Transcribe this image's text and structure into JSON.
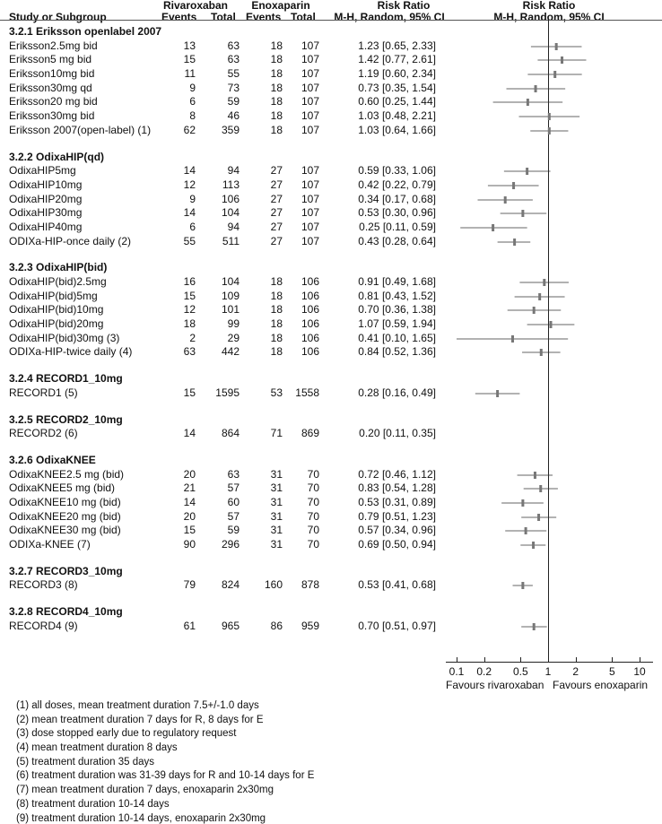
{
  "chart_data": {
    "type": "forest",
    "header": {
      "study": "Study or Subgroup",
      "group1": "Rivaroxaban",
      "group2": "Enoxaparin",
      "events": "Events",
      "total": "Total",
      "rr": "Risk Ratio",
      "rr_method": "M-H, Random, 95% CI",
      "plot_title": "Risk Ratio",
      "plot_method": "M-H, Random, 95% CI"
    },
    "axis": {
      "scale": "log",
      "ticks": [
        "0.1",
        "0.2",
        "0.5",
        "1",
        "2",
        "5",
        "10"
      ],
      "tick_values": [
        0.1,
        0.2,
        0.5,
        1,
        2,
        5,
        10
      ],
      "xlim": [
        0.085,
        11.5
      ],
      "left_label": "Favours rivaroxaban",
      "right_label": "Favours enoxaparin"
    },
    "groups": [
      {
        "title": "3.2.1 Eriksson openlabel 2007",
        "studies": [
          {
            "name": "Eriksson2.5mg bid",
            "e1": "13",
            "n1": "63",
            "e2": "18",
            "n2": "107",
            "rr_text": "1.23 [0.65, 2.33]",
            "rr": 1.23,
            "lo": 0.65,
            "hi": 2.33
          },
          {
            "name": "Eriksson5 mg bid",
            "e1": "15",
            "n1": "63",
            "e2": "18",
            "n2": "107",
            "rr_text": "1.42 [0.77, 2.61]",
            "rr": 1.42,
            "lo": 0.77,
            "hi": 2.61
          },
          {
            "name": "Eriksson10mg bid",
            "e1": "11",
            "n1": "55",
            "e2": "18",
            "n2": "107",
            "rr_text": "1.19 [0.60, 2.34]",
            "rr": 1.19,
            "lo": 0.6,
            "hi": 2.34
          },
          {
            "name": "Eriksson30mg qd",
            "e1": "9",
            "n1": "73",
            "e2": "18",
            "n2": "107",
            "rr_text": "0.73 [0.35, 1.54]",
            "rr": 0.73,
            "lo": 0.35,
            "hi": 1.54
          },
          {
            "name": "Eriksson20 mg bid",
            "e1": "6",
            "n1": "59",
            "e2": "18",
            "n2": "107",
            "rr_text": "0.60 [0.25, 1.44]",
            "rr": 0.6,
            "lo": 0.25,
            "hi": 1.44
          },
          {
            "name": "Eriksson30mg bid",
            "e1": "8",
            "n1": "46",
            "e2": "18",
            "n2": "107",
            "rr_text": "1.03 [0.48, 2.21]",
            "rr": 1.03,
            "lo": 0.48,
            "hi": 2.21
          },
          {
            "name": "Eriksson 2007(open-label) (1)",
            "e1": "62",
            "n1": "359",
            "e2": "18",
            "n2": "107",
            "rr_text": "1.03 [0.64, 1.66]",
            "rr": 1.03,
            "lo": 0.64,
            "hi": 1.66
          }
        ]
      },
      {
        "title": "3.2.2 OdixaHIP(qd)",
        "studies": [
          {
            "name": "OdixaHIP5mg",
            "e1": "14",
            "n1": "94",
            "e2": "27",
            "n2": "107",
            "rr_text": "0.59 [0.33, 1.06]",
            "rr": 0.59,
            "lo": 0.33,
            "hi": 1.06
          },
          {
            "name": "OdixaHIP10mg",
            "e1": "12",
            "n1": "113",
            "e2": "27",
            "n2": "107",
            "rr_text": "0.42 [0.22, 0.79]",
            "rr": 0.42,
            "lo": 0.22,
            "hi": 0.79
          },
          {
            "name": "OdixaHIP20mg",
            "e1": "9",
            "n1": "106",
            "e2": "27",
            "n2": "107",
            "rr_text": "0.34 [0.17, 0.68]",
            "rr": 0.34,
            "lo": 0.17,
            "hi": 0.68
          },
          {
            "name": "OdixaHIP30mg",
            "e1": "14",
            "n1": "104",
            "e2": "27",
            "n2": "107",
            "rr_text": "0.53 [0.30, 0.96]",
            "rr": 0.53,
            "lo": 0.3,
            "hi": 0.96
          },
          {
            "name": "OdixaHIP40mg",
            "e1": "6",
            "n1": "94",
            "e2": "27",
            "n2": "107",
            "rr_text": "0.25 [0.11, 0.59]",
            "rr": 0.25,
            "lo": 0.11,
            "hi": 0.59
          },
          {
            "name": "ODIXa-HIP-once daily (2)",
            "e1": "55",
            "n1": "511",
            "e2": "27",
            "n2": "107",
            "rr_text": "0.43 [0.28, 0.64]",
            "rr": 0.43,
            "lo": 0.28,
            "hi": 0.64
          }
        ]
      },
      {
        "title": "3.2.3 OdixaHIP(bid)",
        "studies": [
          {
            "name": "OdixaHIP(bid)2.5mg",
            "e1": "16",
            "n1": "104",
            "e2": "18",
            "n2": "106",
            "rr_text": "0.91 [0.49, 1.68]",
            "rr": 0.91,
            "lo": 0.49,
            "hi": 1.68
          },
          {
            "name": "OdixaHIP(bid)5mg",
            "e1": "15",
            "n1": "109",
            "e2": "18",
            "n2": "106",
            "rr_text": "0.81 [0.43, 1.52]",
            "rr": 0.81,
            "lo": 0.43,
            "hi": 1.52
          },
          {
            "name": "OdixaHIP(bid)10mg",
            "e1": "12",
            "n1": "101",
            "e2": "18",
            "n2": "106",
            "rr_text": "0.70 [0.36, 1.38]",
            "rr": 0.7,
            "lo": 0.36,
            "hi": 1.38
          },
          {
            "name": "OdixaHIP(bid)20mg",
            "e1": "18",
            "n1": "99",
            "e2": "18",
            "n2": "106",
            "rr_text": "1.07 [0.59, 1.94]",
            "rr": 1.07,
            "lo": 0.59,
            "hi": 1.94
          },
          {
            "name": "OdixaHIP(bid)30mg (3)",
            "e1": "2",
            "n1": "29",
            "e2": "18",
            "n2": "106",
            "rr_text": "0.41 [0.10, 1.65]",
            "rr": 0.41,
            "lo": 0.1,
            "hi": 1.65
          },
          {
            "name": "ODIXa-HIP-twice daily (4)",
            "e1": "63",
            "n1": "442",
            "e2": "18",
            "n2": "106",
            "rr_text": "0.84 [0.52, 1.36]",
            "rr": 0.84,
            "lo": 0.52,
            "hi": 1.36
          }
        ]
      },
      {
        "title": "3.2.4 RECORD1_10mg",
        "studies": [
          {
            "name": "RECORD1 (5)",
            "e1": "15",
            "n1": "1595",
            "e2": "53",
            "n2": "1558",
            "rr_text": "0.28 [0.16, 0.49]",
            "rr": 0.28,
            "lo": 0.16,
            "hi": 0.49
          }
        ]
      },
      {
        "title": "3.2.5 RECORD2_10mg",
        "studies": [
          {
            "name": "RECORD2 (6)",
            "e1": "14",
            "n1": "864",
            "e2": "71",
            "n2": "869",
            "rr_text": "0.20 [0.11, 0.35]",
            "rr": 0.2,
            "lo": 0.11,
            "hi": 0.35,
            "drawn": false
          }
        ]
      },
      {
        "title": "3.2.6 OdixaKNEE",
        "studies": [
          {
            "name": "OdixaKNEE2.5 mg (bid)",
            "e1": "20",
            "n1": "63",
            "e2": "31",
            "n2": "70",
            "rr_text": "0.72 [0.46, 1.12]",
            "rr": 0.72,
            "lo": 0.46,
            "hi": 1.12
          },
          {
            "name": "OdixaKNEE5 mg (bid)",
            "e1": "21",
            "n1": "57",
            "e2": "31",
            "n2": "70",
            "rr_text": "0.83 [0.54, 1.28]",
            "rr": 0.83,
            "lo": 0.54,
            "hi": 1.28
          },
          {
            "name": "OdixaKNEE10 mg (bid)",
            "e1": "14",
            "n1": "60",
            "e2": "31",
            "n2": "70",
            "rr_text": "0.53 [0.31, 0.89]",
            "rr": 0.53,
            "lo": 0.31,
            "hi": 0.89
          },
          {
            "name": "OdixaKNEE20 mg (bid)",
            "e1": "20",
            "n1": "57",
            "e2": "31",
            "n2": "70",
            "rr_text": "0.79 [0.51, 1.23]",
            "rr": 0.79,
            "lo": 0.51,
            "hi": 1.23
          },
          {
            "name": "OdixaKNEE30 mg (bid)",
            "e1": "15",
            "n1": "59",
            "e2": "31",
            "n2": "70",
            "rr_text": "0.57 [0.34, 0.96]",
            "rr": 0.57,
            "lo": 0.34,
            "hi": 0.96
          },
          {
            "name": "ODIXa-KNEE (7)",
            "e1": "90",
            "n1": "296",
            "e2": "31",
            "n2": "70",
            "rr_text": "0.69 [0.50, 0.94]",
            "rr": 0.69,
            "lo": 0.5,
            "hi": 0.94
          }
        ]
      },
      {
        "title": "3.2.7 RECORD3_10mg",
        "studies": [
          {
            "name": "RECORD3 (8)",
            "e1": "79",
            "n1": "824",
            "e2": "160",
            "n2": "878",
            "rr_text": "0.53 [0.41, 0.68]",
            "rr": 0.53,
            "lo": 0.41,
            "hi": 0.68
          }
        ]
      },
      {
        "title": "3.2.8 RECORD4_10mg",
        "studies": [
          {
            "name": "RECORD4 (9)",
            "e1": "61",
            "n1": "965",
            "e2": "86",
            "n2": "959",
            "rr_text": "0.70 [0.51, 0.97]",
            "rr": 0.7,
            "lo": 0.51,
            "hi": 0.97
          }
        ]
      }
    ],
    "marker_color": "#777777"
  },
  "footnotes": [
    "(1) all doses, mean treatment duration 7.5+/-1.0 days",
    "(2) mean treatment duration 7 days for R, 8 days for E",
    "(3) dose stopped early due to regulatory request",
    "(4) mean treatment duration 8 days",
    "(5) treatment duration 35 days",
    "(6) treatment duration was 31-39 days for R and 10-14 days for E",
    "(7) mean treatment duration 7 days, enoxaparin 2x30mg",
    "(8) treatment duration 10-14 days",
    "(9) treatment duration 10-14 days, enoxaparin 2x30mg"
  ]
}
